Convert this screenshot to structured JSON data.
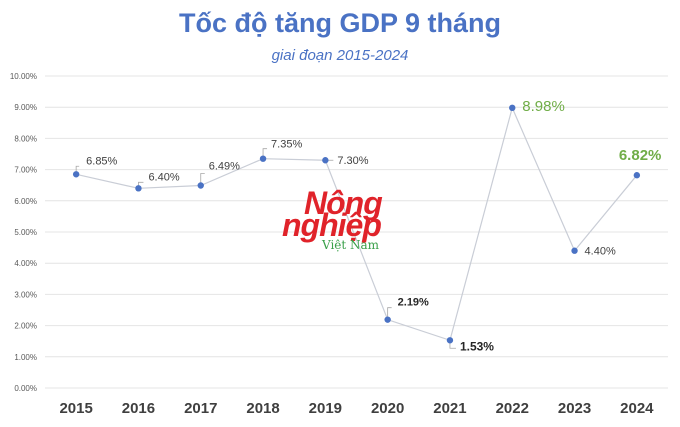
{
  "chart_data": {
    "type": "line",
    "title": "Tốc độ tăng GDP 9 tháng",
    "subtitle": "giai đoạn 2015-2024",
    "xlabel": "",
    "ylabel": "",
    "categories": [
      "2015",
      "2016",
      "2017",
      "2018",
      "2019",
      "2020",
      "2021",
      "2022",
      "2023",
      "2024"
    ],
    "values": [
      6.85,
      6.4,
      6.49,
      7.35,
      7.3,
      2.19,
      1.53,
      8.98,
      4.4,
      6.82
    ],
    "data_labels": [
      "6.85%",
      "6.40%",
      "6.49%",
      "7.35%",
      "7.30%",
      "2.19%",
      "1.53%",
      "8.98%",
      "4.40%",
      "6.82%"
    ],
    "ylim": [
      0,
      10
    ],
    "yticks": [
      "0.00%",
      "1.00%",
      "2.00%",
      "3.00%",
      "4.00%",
      "5.00%",
      "6.00%",
      "7.00%",
      "8.00%",
      "9.00%",
      "10.00%"
    ],
    "grid": true,
    "legend": "none",
    "colors": {
      "title": "#4a72c4",
      "line": "#c9cdd6",
      "marker": "#4a72c4",
      "grid": "#e4e4e4",
      "highlight": "#70ad47",
      "label": "#404040"
    }
  },
  "watermark": {
    "line1": "Nông",
    "line2": "nghiệp",
    "line3": "Việt Nam"
  }
}
